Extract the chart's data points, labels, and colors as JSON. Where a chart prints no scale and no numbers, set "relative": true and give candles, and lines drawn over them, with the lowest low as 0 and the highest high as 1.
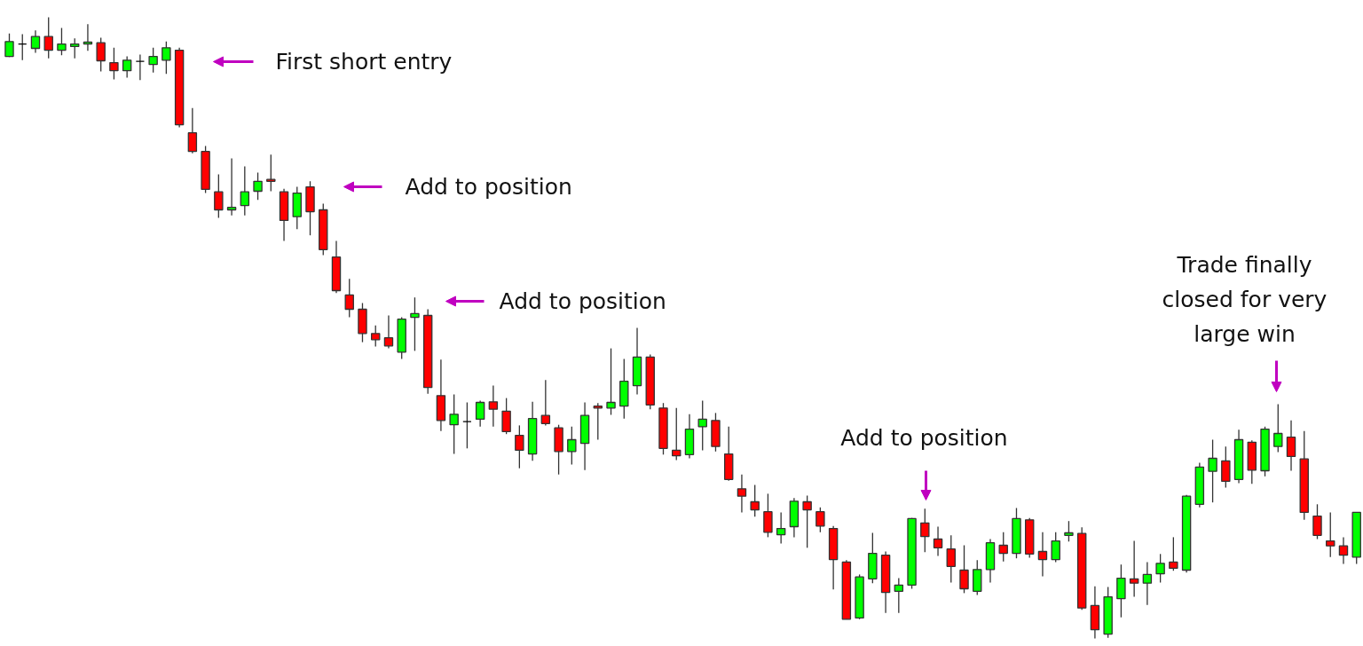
{
  "chart_data": {
    "type": "candlestick",
    "relative": true,
    "categories": [
      null,
      null,
      null,
      null,
      null,
      null,
      null,
      null,
      null,
      null,
      null,
      null,
      null,
      null,
      null,
      null,
      null,
      null,
      null,
      null,
      null,
      null,
      null,
      null,
      null,
      null,
      null,
      null,
      null,
      null,
      null,
      null,
      null,
      null,
      null,
      null,
      null,
      null,
      null,
      null,
      null,
      null,
      null,
      null,
      null,
      null,
      null,
      null,
      null,
      null,
      null,
      null,
      null,
      null,
      null,
      null,
      null,
      null,
      null,
      null,
      null,
      null,
      null,
      null,
      null,
      null,
      null,
      null,
      null,
      null,
      null,
      null,
      null,
      null,
      null,
      null,
      null,
      null,
      null,
      null,
      null,
      null,
      null,
      null,
      null,
      null,
      null,
      null,
      null,
      null,
      null,
      null,
      null,
      null,
      null,
      null,
      null,
      null,
      null,
      null,
      null,
      null,
      null,
      null
    ],
    "ohlc": [
      [
        0.937,
        0.974,
        0.936,
        0.961
      ],
      [
        0.957,
        0.973,
        0.931,
        0.957
      ],
      [
        0.95,
        0.979,
        0.943,
        0.969
      ],
      [
        0.969,
        1.0,
        0.934,
        0.947
      ],
      [
        0.947,
        0.983,
        0.939,
        0.957
      ],
      [
        0.953,
        0.966,
        0.934,
        0.957
      ],
      [
        0.957,
        0.989,
        0.946,
        0.96
      ],
      [
        0.959,
        0.967,
        0.913,
        0.93
      ],
      [
        0.927,
        0.951,
        0.9,
        0.914
      ],
      [
        0.914,
        0.937,
        0.903,
        0.931
      ],
      [
        0.929,
        0.94,
        0.899,
        0.929
      ],
      [
        0.924,
        0.951,
        0.911,
        0.937
      ],
      [
        0.931,
        0.961,
        0.909,
        0.951
      ],
      [
        0.947,
        0.951,
        0.823,
        0.827
      ],
      [
        0.814,
        0.854,
        0.781,
        0.784
      ],
      [
        0.784,
        0.793,
        0.717,
        0.723
      ],
      [
        0.719,
        0.747,
        0.677,
        0.69
      ],
      [
        0.69,
        0.773,
        0.681,
        0.694
      ],
      [
        0.697,
        0.76,
        0.681,
        0.719
      ],
      [
        0.72,
        0.75,
        0.706,
        0.736
      ],
      [
        0.739,
        0.779,
        0.72,
        0.736
      ],
      [
        0.719,
        0.724,
        0.64,
        0.673
      ],
      [
        0.679,
        0.727,
        0.659,
        0.717
      ],
      [
        0.727,
        0.736,
        0.649,
        0.687
      ],
      [
        0.69,
        0.7,
        0.617,
        0.626
      ],
      [
        0.614,
        0.64,
        0.556,
        0.56
      ],
      [
        0.553,
        0.579,
        0.517,
        0.53
      ],
      [
        0.53,
        0.54,
        0.477,
        0.491
      ],
      [
        0.491,
        0.504,
        0.47,
        0.481
      ],
      [
        0.484,
        0.52,
        0.467,
        0.471
      ],
      [
        0.461,
        0.517,
        0.45,
        0.514
      ],
      [
        0.517,
        0.549,
        0.463,
        0.523
      ],
      [
        0.52,
        0.53,
        0.394,
        0.404
      ],
      [
        0.391,
        0.449,
        0.334,
        0.351
      ],
      [
        0.344,
        0.393,
        0.297,
        0.361
      ],
      [
        0.349,
        0.38,
        0.306,
        0.349
      ],
      [
        0.353,
        0.383,
        0.341,
        0.38
      ],
      [
        0.381,
        0.407,
        0.341,
        0.369
      ],
      [
        0.366,
        0.387,
        0.329,
        0.333
      ],
      [
        0.327,
        0.343,
        0.274,
        0.303
      ],
      [
        0.297,
        0.381,
        0.286,
        0.354
      ],
      [
        0.359,
        0.416,
        0.343,
        0.346
      ],
      [
        0.339,
        0.344,
        0.264,
        0.301
      ],
      [
        0.301,
        0.341,
        0.28,
        0.32
      ],
      [
        0.314,
        0.38,
        0.271,
        0.359
      ],
      [
        0.374,
        0.379,
        0.32,
        0.371
      ],
      [
        0.371,
        0.467,
        0.36,
        0.38
      ],
      [
        0.374,
        0.45,
        0.354,
        0.414
      ],
      [
        0.407,
        0.5,
        0.393,
        0.453
      ],
      [
        0.453,
        0.457,
        0.369,
        0.376
      ],
      [
        0.371,
        0.379,
        0.296,
        0.306
      ],
      [
        0.303,
        0.371,
        0.287,
        0.294
      ],
      [
        0.296,
        0.361,
        0.29,
        0.337
      ],
      [
        0.341,
        0.383,
        0.303,
        0.353
      ],
      [
        0.351,
        0.363,
        0.301,
        0.309
      ],
      [
        0.297,
        0.341,
        0.254,
        0.256
      ],
      [
        0.241,
        0.264,
        0.203,
        0.229
      ],
      [
        0.22,
        0.247,
        0.196,
        0.207
      ],
      [
        0.204,
        0.233,
        0.163,
        0.171
      ],
      [
        0.167,
        0.203,
        0.153,
        0.177
      ],
      [
        0.18,
        0.226,
        0.163,
        0.221
      ],
      [
        0.22,
        0.23,
        0.146,
        0.207
      ],
      [
        0.204,
        0.211,
        0.171,
        0.181
      ],
      [
        0.177,
        0.181,
        0.079,
        0.127
      ],
      [
        0.123,
        0.126,
        0.031,
        0.031
      ],
      [
        0.033,
        0.103,
        0.031,
        0.099
      ],
      [
        0.096,
        0.17,
        0.089,
        0.137
      ],
      [
        0.134,
        0.14,
        0.041,
        0.074
      ],
      [
        0.076,
        0.097,
        0.041,
        0.086
      ],
      [
        0.086,
        0.194,
        0.08,
        0.193
      ],
      [
        0.186,
        0.209,
        0.139,
        0.164
      ],
      [
        0.16,
        0.18,
        0.133,
        0.146
      ],
      [
        0.144,
        0.166,
        0.09,
        0.116
      ],
      [
        0.11,
        0.15,
        0.073,
        0.08
      ],
      [
        0.076,
        0.126,
        0.07,
        0.111
      ],
      [
        0.111,
        0.16,
        0.09,
        0.154
      ],
      [
        0.15,
        0.171,
        0.124,
        0.137
      ],
      [
        0.137,
        0.21,
        0.129,
        0.193
      ],
      [
        0.191,
        0.194,
        0.13,
        0.136
      ],
      [
        0.14,
        0.171,
        0.1,
        0.127
      ],
      [
        0.127,
        0.171,
        0.123,
        0.157
      ],
      [
        0.166,
        0.189,
        0.156,
        0.17
      ],
      [
        0.169,
        0.179,
        0.046,
        0.049
      ],
      [
        0.053,
        0.084,
        0.0,
        0.014
      ],
      [
        0.007,
        0.083,
        0.001,
        0.067
      ],
      [
        0.064,
        0.119,
        0.034,
        0.097
      ],
      [
        0.096,
        0.157,
        0.067,
        0.089
      ],
      [
        0.089,
        0.123,
        0.054,
        0.103
      ],
      [
        0.104,
        0.136,
        0.09,
        0.121
      ],
      [
        0.123,
        0.163,
        0.109,
        0.113
      ],
      [
        0.11,
        0.231,
        0.106,
        0.229
      ],
      [
        0.216,
        0.283,
        0.211,
        0.276
      ],
      [
        0.269,
        0.32,
        0.219,
        0.29
      ],
      [
        0.286,
        0.309,
        0.243,
        0.253
      ],
      [
        0.256,
        0.336,
        0.25,
        0.32
      ],
      [
        0.316,
        0.319,
        0.249,
        0.271
      ],
      [
        0.27,
        0.341,
        0.261,
        0.337
      ],
      [
        0.309,
        0.377,
        0.3,
        0.33
      ],
      [
        0.324,
        0.351,
        0.27,
        0.293
      ],
      [
        0.289,
        0.334,
        0.191,
        0.203
      ],
      [
        0.197,
        0.216,
        0.16,
        0.166
      ],
      [
        0.157,
        0.203,
        0.131,
        0.149
      ],
      [
        0.149,
        0.163,
        0.12,
        0.134
      ],
      [
        0.131,
        0.203,
        0.12,
        0.203
      ]
    ],
    "colors": [
      "#00ff00",
      "#000000",
      "#00ff00",
      "#ff0000",
      "#00ff00",
      "#00ff00",
      "#00ff00",
      "#ff0000",
      "#ff0000",
      "#00ff00",
      "#000000",
      "#00ff00",
      "#00ff00",
      "#ff0000",
      "#ff0000",
      "#ff0000",
      "#ff0000",
      "#00ff00",
      "#00ff00",
      "#00ff00",
      "#ff0000",
      "#ff0000",
      "#00ff00",
      "#ff0000",
      "#ff0000",
      "#ff0000",
      "#ff0000",
      "#ff0000",
      "#ff0000",
      "#ff0000",
      "#00ff00",
      "#00ff00",
      "#ff0000",
      "#ff0000",
      "#00ff00",
      "#000000",
      "#00ff00",
      "#ff0000",
      "#ff0000",
      "#ff0000",
      "#00ff00",
      "#ff0000",
      "#ff0000",
      "#00ff00",
      "#00ff00",
      "#ff0000",
      "#00ff00",
      "#00ff00",
      "#00ff00",
      "#ff0000",
      "#ff0000",
      "#ff0000",
      "#00ff00",
      "#00ff00",
      "#ff0000",
      "#ff0000",
      "#ff0000",
      "#ff0000",
      "#ff0000",
      "#00ff00",
      "#00ff00",
      "#ff0000",
      "#ff0000",
      "#ff0000",
      "#ff0000",
      "#00ff00",
      "#00ff00",
      "#ff0000",
      "#00ff00",
      "#00ff00",
      "#ff0000",
      "#ff0000",
      "#ff0000",
      "#ff0000",
      "#00ff00",
      "#00ff00",
      "#ff0000",
      "#00ff00",
      "#ff0000",
      "#ff0000",
      "#00ff00",
      "#00ff00",
      "#ff0000",
      "#ff0000",
      "#00ff00",
      "#00ff00",
      "#ff0000",
      "#00ff00",
      "#00ff00",
      "#ff0000",
      "#00ff00",
      "#00ff00",
      "#00ff00",
      "#ff0000",
      "#00ff00",
      "#ff0000",
      "#00ff00",
      "#00ff00",
      "#ff0000",
      "#ff0000",
      "#ff0000",
      "#ff0000",
      "#ff0000",
      "#00ff00"
    ],
    "annotations": [
      "First short entry",
      "Add to position",
      "Add to position",
      "Add to position",
      "Trade finally\nclosed for very\nlarge win"
    ]
  }
}
